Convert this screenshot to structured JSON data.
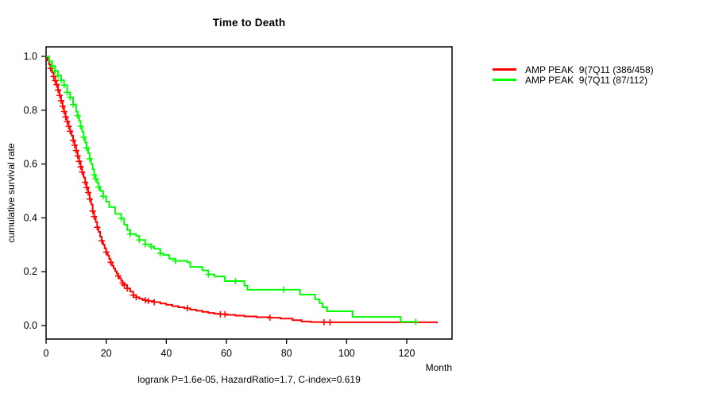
{
  "title": "Time to Death",
  "xlabel": "Month",
  "ylabel": "cumulative survival rate",
  "caption": "logrank P=1.6e-05, HazardRatio=1.7, C-index=0.619",
  "colors": {
    "series1": "#ff0000",
    "series2": "#00ff00",
    "axis": "#000000"
  },
  "legend": [
    {
      "label": "AMP PEAK  9(7Q11 (386/458)",
      "color": "#ff0000"
    },
    {
      "label": "AMP PEAK  9(7Q11 (87/112)",
      "color": "#00ff00"
    }
  ],
  "chart_data": {
    "type": "line",
    "subtype": "kaplan-meier-step",
    "title": "Time to Death",
    "xlabel": "Month",
    "ylabel": "cumulative survival rate",
    "annotation": "logrank P=1.6e-05, HazardRatio=1.7, C-index=0.619",
    "xlim": [
      0,
      135
    ],
    "ylim": [
      0,
      1.0
    ],
    "xticks": [
      "0",
      "20",
      "40",
      "60",
      "80",
      "100",
      "120"
    ],
    "yticks": [
      "0.0",
      "0.2",
      "0.4",
      "0.6",
      "0.8",
      "1.0"
    ],
    "grid": false,
    "legend_position": "right-outside",
    "series": [
      {
        "name": "AMP PEAK  9(7Q11 (386/458)",
        "color": "#ff0000",
        "points": [
          [
            0,
            1.0
          ],
          [
            0.5,
            0.985
          ],
          [
            1,
            0.97
          ],
          [
            1.5,
            0.955
          ],
          [
            2,
            0.94
          ],
          [
            2.5,
            0.925
          ],
          [
            3,
            0.91
          ],
          [
            3.5,
            0.895
          ],
          [
            4,
            0.875
          ],
          [
            4.5,
            0.855
          ],
          [
            5,
            0.835
          ],
          [
            5.5,
            0.815
          ],
          [
            6,
            0.795
          ],
          [
            6.5,
            0.775
          ],
          [
            7,
            0.758
          ],
          [
            7.5,
            0.74
          ],
          [
            8,
            0.722
          ],
          [
            8.5,
            0.705
          ],
          [
            9,
            0.688
          ],
          [
            9.5,
            0.67
          ],
          [
            10,
            0.65
          ],
          [
            10.5,
            0.63
          ],
          [
            11,
            0.61
          ],
          [
            11.5,
            0.59
          ],
          [
            12,
            0.57
          ],
          [
            12.5,
            0.55
          ],
          [
            13,
            0.532
          ],
          [
            13.5,
            0.513
          ],
          [
            14,
            0.494
          ],
          [
            14.5,
            0.47
          ],
          [
            15,
            0.45
          ],
          [
            15.5,
            0.425
          ],
          [
            16,
            0.405
          ],
          [
            16.5,
            0.385
          ],
          [
            17,
            0.365
          ],
          [
            17.5,
            0.348
          ],
          [
            18,
            0.33
          ],
          [
            18.5,
            0.315
          ],
          [
            19,
            0.3
          ],
          [
            19.5,
            0.287
          ],
          [
            20,
            0.273
          ],
          [
            20.5,
            0.26
          ],
          [
            21,
            0.247
          ],
          [
            21.5,
            0.235
          ],
          [
            22,
            0.222
          ],
          [
            22.5,
            0.212
          ],
          [
            23,
            0.202
          ],
          [
            23.5,
            0.193
          ],
          [
            24,
            0.184
          ],
          [
            24.5,
            0.175
          ],
          [
            25,
            0.166
          ],
          [
            25.5,
            0.158
          ],
          [
            26,
            0.15
          ],
          [
            27,
            0.138
          ],
          [
            28,
            0.126
          ],
          [
            29,
            0.113
          ],
          [
            30,
            0.105
          ],
          [
            31,
            0.1
          ],
          [
            32,
            0.097
          ],
          [
            33,
            0.094
          ],
          [
            34,
            0.091
          ],
          [
            36,
            0.087
          ],
          [
            38,
            0.082
          ],
          [
            40,
            0.077
          ],
          [
            42,
            0.072
          ],
          [
            44,
            0.068
          ],
          [
            46,
            0.064
          ],
          [
            48,
            0.059
          ],
          [
            50,
            0.055
          ],
          [
            52,
            0.051
          ],
          [
            54,
            0.047
          ],
          [
            56,
            0.044
          ],
          [
            58,
            0.042
          ],
          [
            60,
            0.04
          ],
          [
            63,
            0.037
          ],
          [
            66,
            0.034
          ],
          [
            70,
            0.031
          ],
          [
            74,
            0.029
          ],
          [
            78,
            0.026
          ],
          [
            82,
            0.02
          ],
          [
            85,
            0.015
          ],
          [
            88,
            0.013
          ],
          [
            92,
            0.012
          ],
          [
            129,
            0.012
          ],
          [
            130,
            0.008
          ]
        ],
        "censors": [
          [
            1.5,
            0.955
          ],
          [
            2.5,
            0.925
          ],
          [
            3,
            0.91
          ],
          [
            3.5,
            0.895
          ],
          [
            4,
            0.875
          ],
          [
            4.5,
            0.855
          ],
          [
            5,
            0.835
          ],
          [
            5.5,
            0.815
          ],
          [
            6,
            0.795
          ],
          [
            6.5,
            0.775
          ],
          [
            7,
            0.758
          ],
          [
            7.5,
            0.74
          ],
          [
            8,
            0.722
          ],
          [
            9,
            0.688
          ],
          [
            9.5,
            0.67
          ],
          [
            10,
            0.65
          ],
          [
            10.5,
            0.63
          ],
          [
            11,
            0.61
          ],
          [
            11.5,
            0.59
          ],
          [
            12,
            0.57
          ],
          [
            13,
            0.532
          ],
          [
            13.5,
            0.513
          ],
          [
            14,
            0.494
          ],
          [
            14.5,
            0.47
          ],
          [
            15.5,
            0.425
          ],
          [
            16,
            0.405
          ],
          [
            17,
            0.365
          ],
          [
            18.5,
            0.315
          ],
          [
            20,
            0.273
          ],
          [
            21.5,
            0.235
          ],
          [
            24,
            0.184
          ],
          [
            25.5,
            0.158
          ],
          [
            26,
            0.15
          ],
          [
            27,
            0.138
          ],
          [
            29,
            0.113
          ],
          [
            30,
            0.105
          ],
          [
            33,
            0.094
          ],
          [
            34,
            0.091
          ],
          [
            36,
            0.087
          ],
          [
            47,
            0.064
          ],
          [
            58,
            0.042
          ],
          [
            59.5,
            0.042
          ],
          [
            74.5,
            0.029
          ],
          [
            92.5,
            0.012
          ],
          [
            94.5,
            0.012
          ]
        ]
      },
      {
        "name": "AMP PEAK  9(7Q11 (87/112)",
        "color": "#00ff00",
        "points": [
          [
            0,
            1.0
          ],
          [
            1,
            0.982
          ],
          [
            2,
            0.964
          ],
          [
            3,
            0.946
          ],
          [
            4,
            0.929
          ],
          [
            5,
            0.911
          ],
          [
            6,
            0.893
          ],
          [
            7,
            0.866
          ],
          [
            8,
            0.848
          ],
          [
            9,
            0.821
          ],
          [
            10,
            0.795
          ],
          [
            10.5,
            0.78
          ],
          [
            11,
            0.76
          ],
          [
            11.5,
            0.74
          ],
          [
            12,
            0.72
          ],
          [
            12.5,
            0.7
          ],
          [
            13,
            0.68
          ],
          [
            13.5,
            0.66
          ],
          [
            14,
            0.64
          ],
          [
            14.5,
            0.62
          ],
          [
            15,
            0.6
          ],
          [
            15.5,
            0.58
          ],
          [
            16,
            0.56
          ],
          [
            16.5,
            0.545
          ],
          [
            17,
            0.53
          ],
          [
            17.5,
            0.515
          ],
          [
            18,
            0.5
          ],
          [
            19,
            0.48
          ],
          [
            20,
            0.46
          ],
          [
            21,
            0.44
          ],
          [
            23,
            0.415
          ],
          [
            25,
            0.398
          ],
          [
            26,
            0.375
          ],
          [
            27,
            0.355
          ],
          [
            28,
            0.34
          ],
          [
            30,
            0.333
          ],
          [
            31,
            0.318
          ],
          [
            33,
            0.302
          ],
          [
            35,
            0.293
          ],
          [
            36,
            0.285
          ],
          [
            38,
            0.268
          ],
          [
            39,
            0.262
          ],
          [
            41,
            0.248
          ],
          [
            43,
            0.24
          ],
          [
            47,
            0.235
          ],
          [
            48,
            0.218
          ],
          [
            52,
            0.205
          ],
          [
            54,
            0.19
          ],
          [
            56,
            0.182
          ],
          [
            59.5,
            0.165
          ],
          [
            66,
            0.148
          ],
          [
            67,
            0.133
          ],
          [
            84.5,
            0.115
          ],
          [
            89.5,
            0.097
          ],
          [
            91,
            0.083
          ],
          [
            92,
            0.068
          ],
          [
            93.5,
            0.053
          ],
          [
            102,
            0.032
          ],
          [
            118,
            0.014
          ],
          [
            123,
            0.014
          ]
        ],
        "censors": [
          [
            2,
            0.964
          ],
          [
            3,
            0.946
          ],
          [
            4,
            0.929
          ],
          [
            5,
            0.911
          ],
          [
            6,
            0.893
          ],
          [
            7,
            0.866
          ],
          [
            8,
            0.848
          ],
          [
            9,
            0.821
          ],
          [
            10.5,
            0.78
          ],
          [
            11.5,
            0.74
          ],
          [
            12.5,
            0.7
          ],
          [
            13.5,
            0.66
          ],
          [
            14.5,
            0.62
          ],
          [
            16,
            0.56
          ],
          [
            16.5,
            0.545
          ],
          [
            17.5,
            0.515
          ],
          [
            19,
            0.48
          ],
          [
            25,
            0.398
          ],
          [
            28,
            0.34
          ],
          [
            31,
            0.318
          ],
          [
            33,
            0.302
          ],
          [
            35,
            0.293
          ],
          [
            38,
            0.268
          ],
          [
            43,
            0.24
          ],
          [
            54,
            0.19
          ],
          [
            63,
            0.165
          ],
          [
            79,
            0.133
          ],
          [
            123,
            0.014
          ]
        ]
      }
    ]
  }
}
